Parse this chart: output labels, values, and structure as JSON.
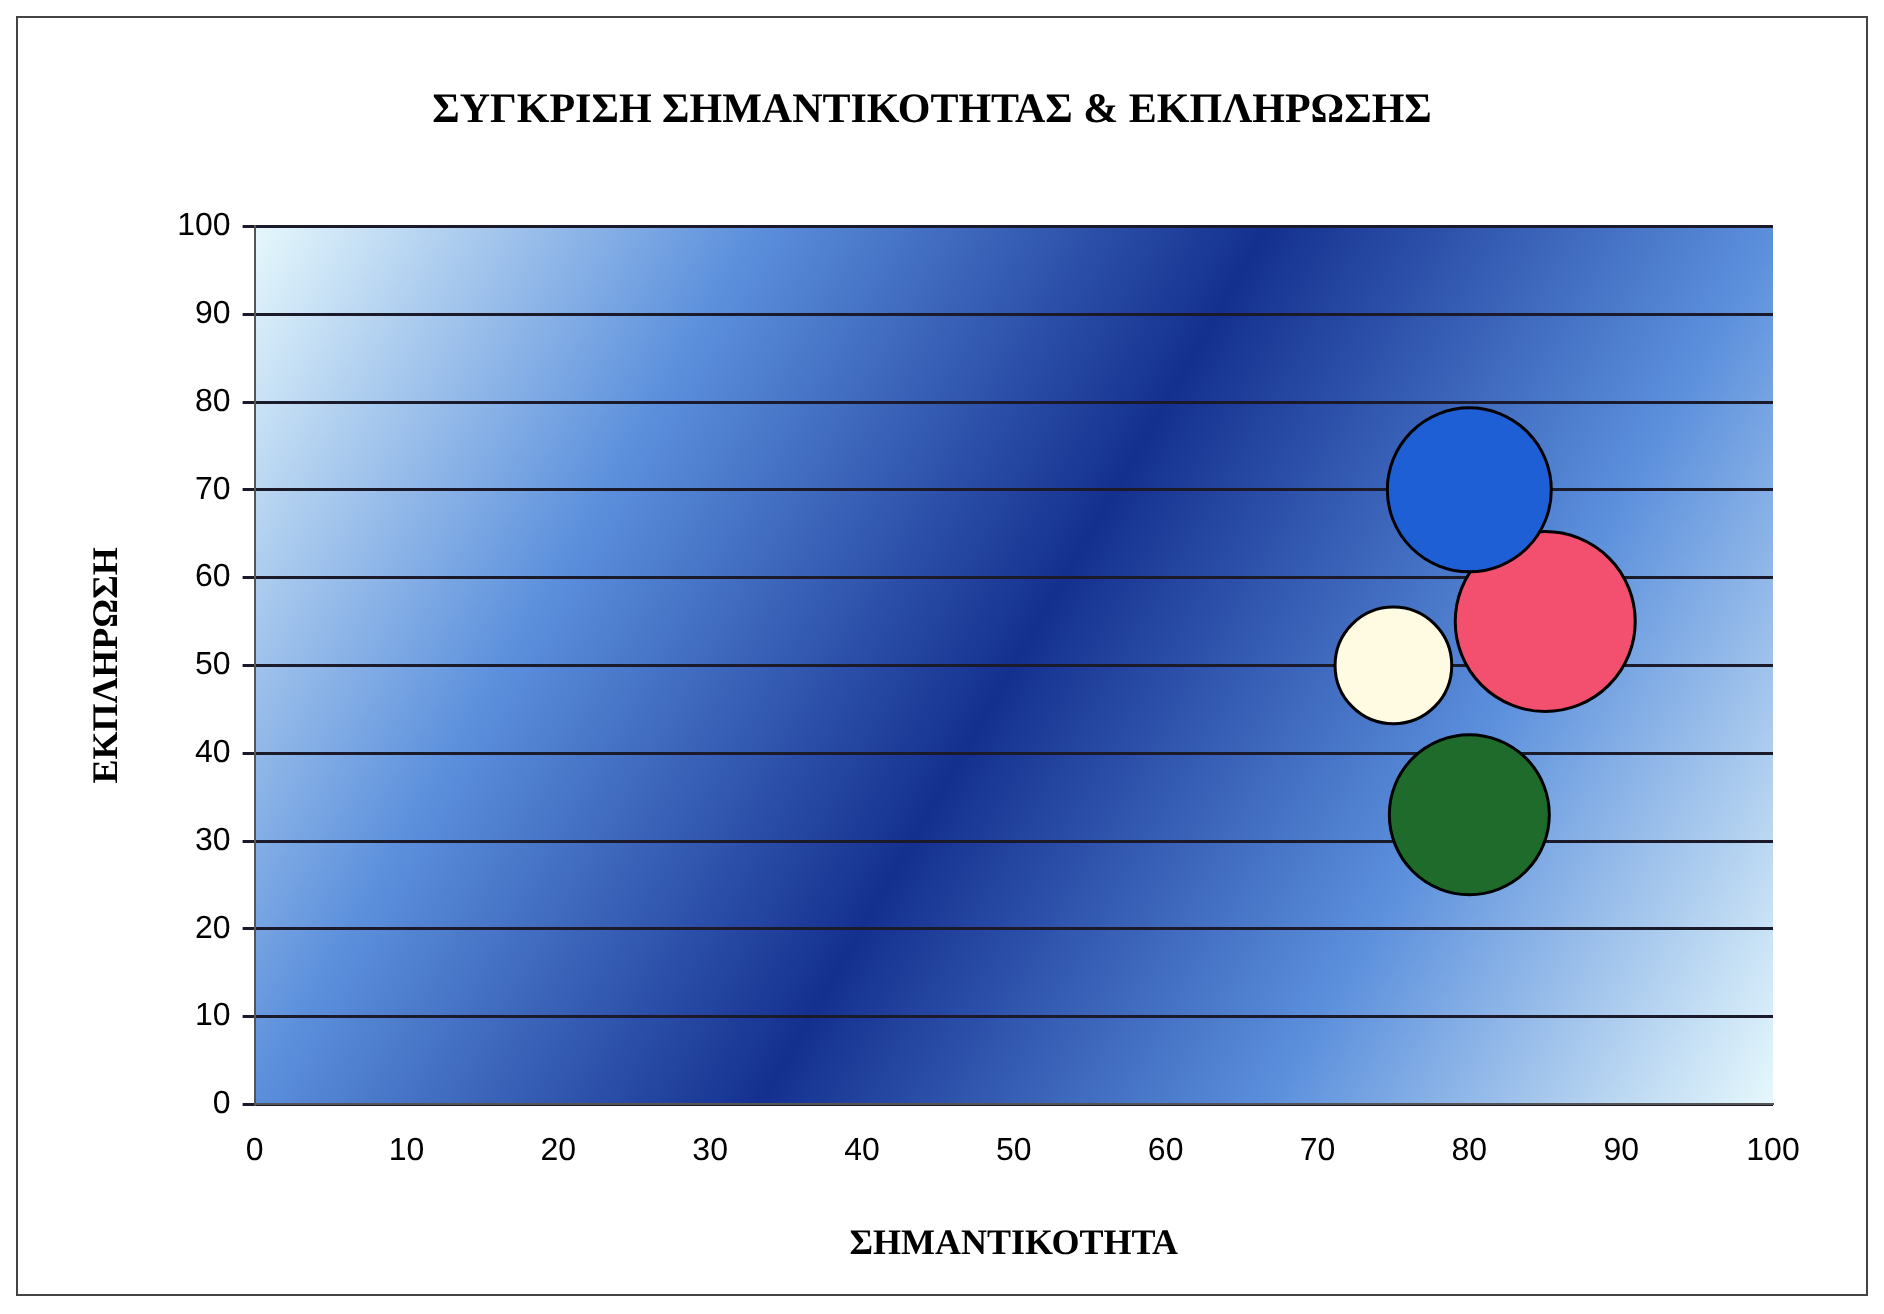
{
  "chart_data": {
    "type": "bubble",
    "title": "ΣΥΓΚΡΙΣΗ ΣΗΜΑΝΤΙΚΟΤΗΤΑΣ & ΕΚΠΛΗΡΩΣΗΣ",
    "xlabel": "ΣΗΜΑΝΤΙΚΟΤΗΤΑ",
    "ylabel": "ΕΚΠΛΗΡΩΣΗ",
    "x": [
      85,
      80,
      75,
      80
    ],
    "values": [
      55,
      70,
      50,
      33
    ],
    "sizes": [
      1,
      0.83,
      0.42,
      0.79
    ],
    "colors": [
      "#f2506e",
      "#1f5fd6",
      "#fffbe3",
      "#1e6b2c"
    ],
    "xlim": [
      0,
      100
    ],
    "xticks": [
      0,
      10,
      20,
      30,
      40,
      50,
      60,
      70,
      80,
      90,
      100
    ],
    "ylim": [
      0,
      100
    ],
    "yticks": [
      0,
      10,
      20,
      30,
      40,
      50,
      60,
      70,
      80,
      90,
      100
    ],
    "grid": "y",
    "legend": false
  }
}
